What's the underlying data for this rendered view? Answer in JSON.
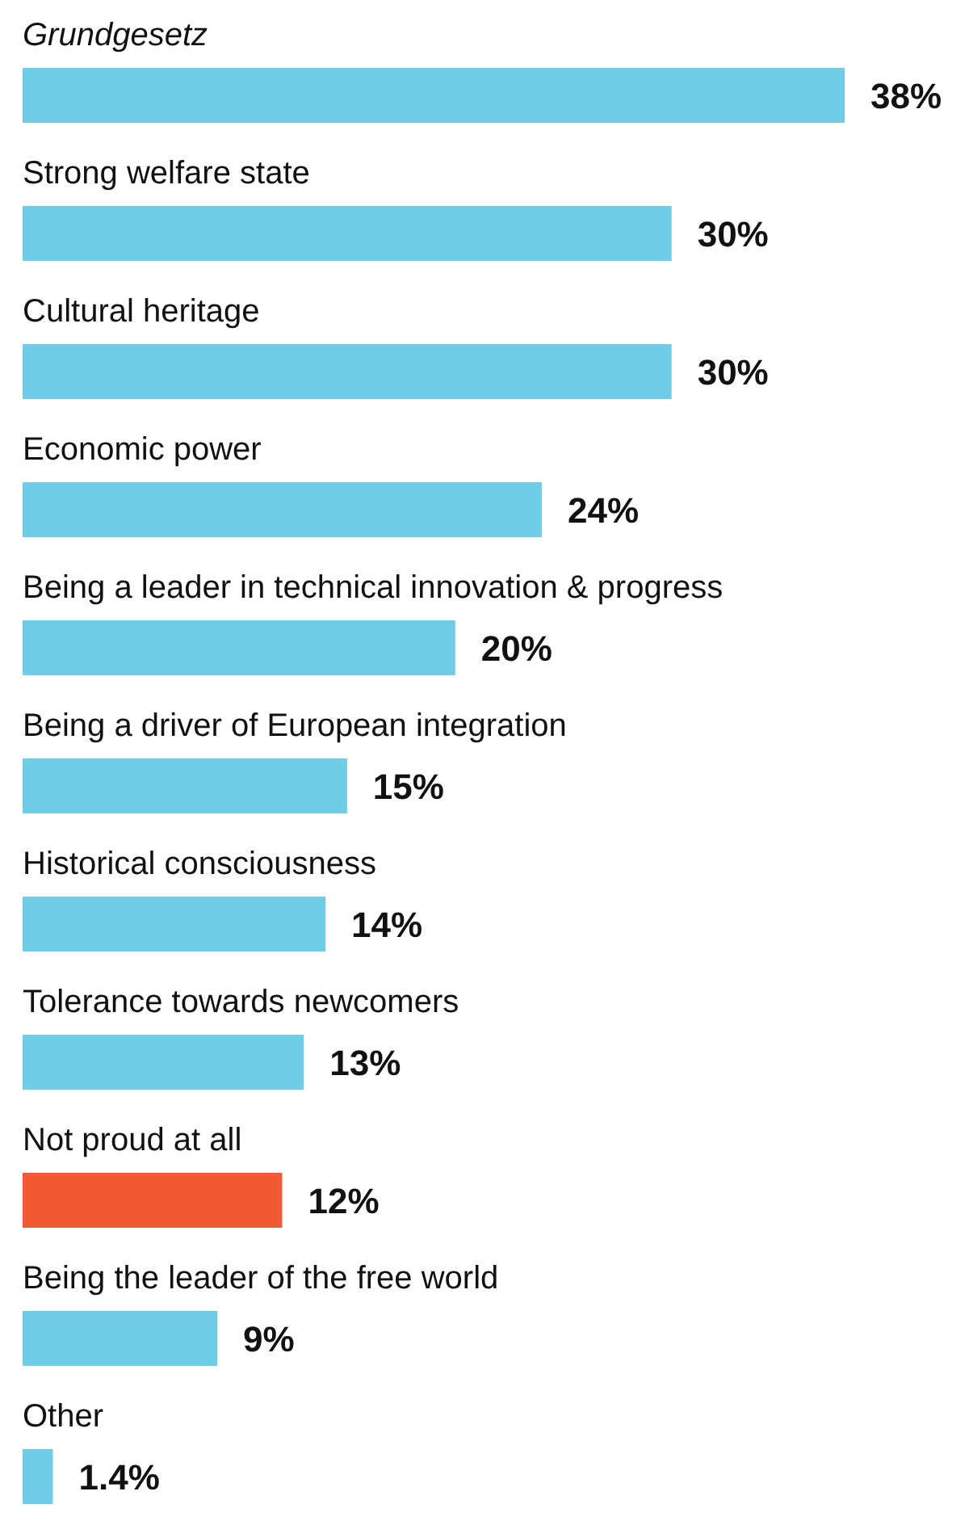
{
  "chart_data": {
    "type": "bar",
    "orientation": "horizontal",
    "categories": [
      "Grundgesetz",
      "Strong welfare state",
      "Cultural heritage",
      "Economic power",
      "Being a leader in technical innovation & progress",
      "Being a driver of European integration",
      "Historical consciousness",
      "Tolerance towards newcomers",
      "Not proud at all",
      "Being the leader of the free world",
      "Other"
    ],
    "values": [
      38,
      30,
      30,
      24,
      20,
      15,
      14,
      13,
      12,
      9,
      1.4
    ],
    "colors": [
      "#6fcde8",
      "#6fcde8",
      "#6fcde8",
      "#6fcde8",
      "#6fcde8",
      "#6fcde8",
      "#6fcde8",
      "#6fcde8",
      "#f15a35",
      "#6fcde8",
      "#6fcde8"
    ],
    "value_labels": [
      "38%",
      "30%",
      "30%",
      "24%",
      "20%",
      "15%",
      "14%",
      "13%",
      "12%",
      "9%",
      "1.4%"
    ]
  }
}
